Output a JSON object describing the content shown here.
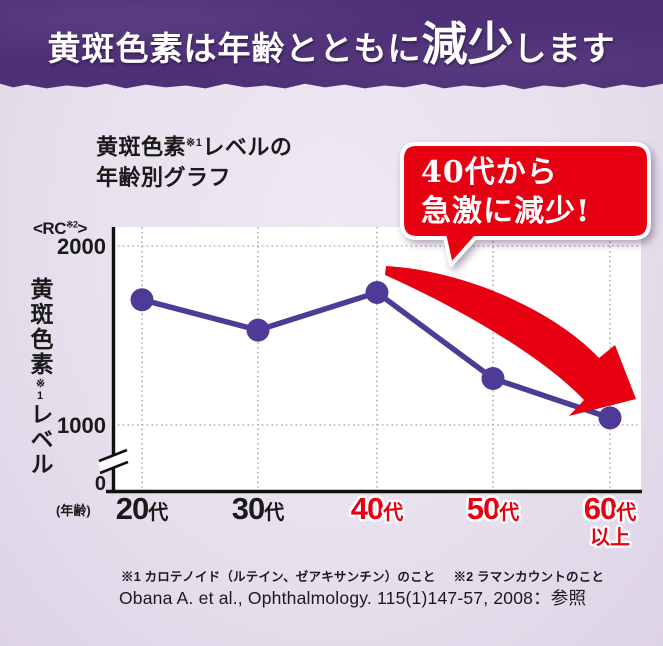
{
  "header": {
    "title_prefix": "黄斑色素は年齢とともに",
    "title_emphasis": "減少",
    "title_suffix": "します"
  },
  "chart": {
    "title_line1_main": "黄斑色素",
    "title_line1_sup": "※1",
    "title_line1_rest": "レベルの",
    "title_line2": "年齢別グラフ",
    "y_unit_open": "<RC",
    "y_unit_sup": "※2",
    "y_unit_close": ">",
    "y_tick_2000": "2000",
    "y_tick_1000": "1000",
    "y_tick_0": "0",
    "y_label_main": "黄斑色素",
    "y_label_sup": "※1",
    "y_label_rest": "レベル",
    "x_caption": "(年齢)",
    "x_labels": [
      {
        "num": "20",
        "suffix": "代",
        "color": "black"
      },
      {
        "num": "30",
        "suffix": "代",
        "color": "black"
      },
      {
        "num": "40",
        "suffix": "代",
        "color": "red"
      },
      {
        "num": "50",
        "suffix": "代",
        "color": "red"
      },
      {
        "num": "60",
        "suffix": "代",
        "extra": "以上",
        "color": "red"
      }
    ]
  },
  "callout": {
    "line1": "40代から",
    "line2": "急激に減少!"
  },
  "footnotes": {
    "note1": "※1 カロテノイド（ルテイン、ゼアキサンチン）のこと",
    "note2": "※2 ラマンカウントのこと",
    "citation": "Obana A. et al., Ophthalmology. 115(1)147-57, 2008：参照"
  },
  "colors": {
    "header_purple": "#4e2f78",
    "series_purple": "#4e3a97",
    "accent_red": "#e60012",
    "background_lavender": "#e7e0ed",
    "text_black": "#1a1a1a"
  },
  "chart_data": {
    "type": "line",
    "title": "黄斑色素※1レベルの年齢別グラフ",
    "xlabel": "年齢",
    "ylabel": "黄斑色素※1レベル",
    "y_unit": "RC（※2 ラマンカウント）",
    "categories": [
      "20代",
      "30代",
      "40代",
      "50代",
      "60代以上"
    ],
    "values": [
      1700,
      1530,
      1740,
      1260,
      1040
    ],
    "yticks": [
      0,
      1000,
      2000
    ],
    "ylim": [
      0,
      2100
    ],
    "axis_break_between": [
      0,
      1000
    ],
    "grid": true,
    "annotation": "40代から急激に減少!",
    "annotation_target": "40代",
    "highlighted_categories": [
      "40代",
      "50代",
      "60代以上"
    ],
    "legend_position": "none"
  }
}
